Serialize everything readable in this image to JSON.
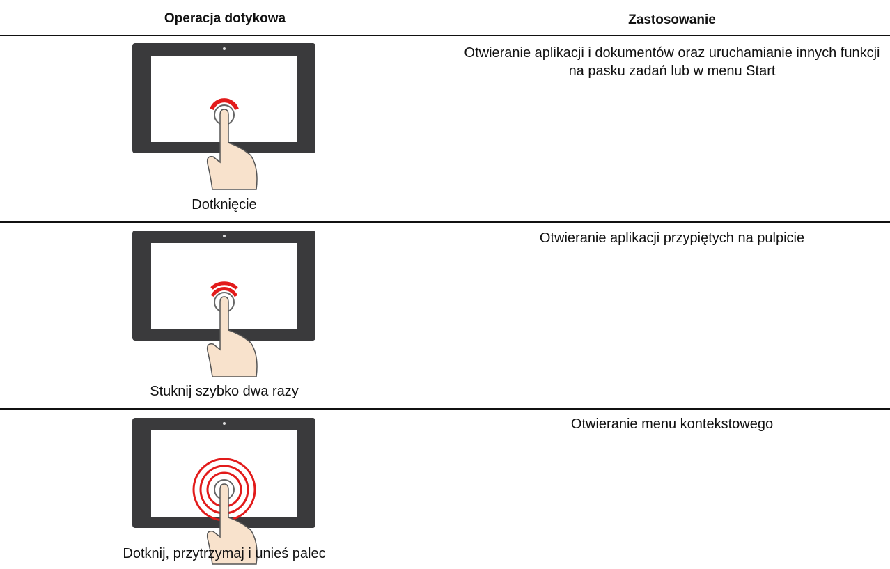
{
  "table": {
    "header": [
      "Operacja dotykowa",
      "Zastosowanie"
    ],
    "rows": [
      [
        "Dotknięcie",
        "Otwieranie aplikacji i dokumentów oraz uruchamianie innych funkcji na pasku zadań lub w menu Start"
      ],
      [
        "Stuknij szybko dwa razy",
        "Otwieranie aplikacji przypiętych na pulpicie"
      ],
      [
        "Dotknij, przytrzymaj i unieś palec",
        "Otwieranie menu kontekstowego"
      ]
    ]
  }
}
